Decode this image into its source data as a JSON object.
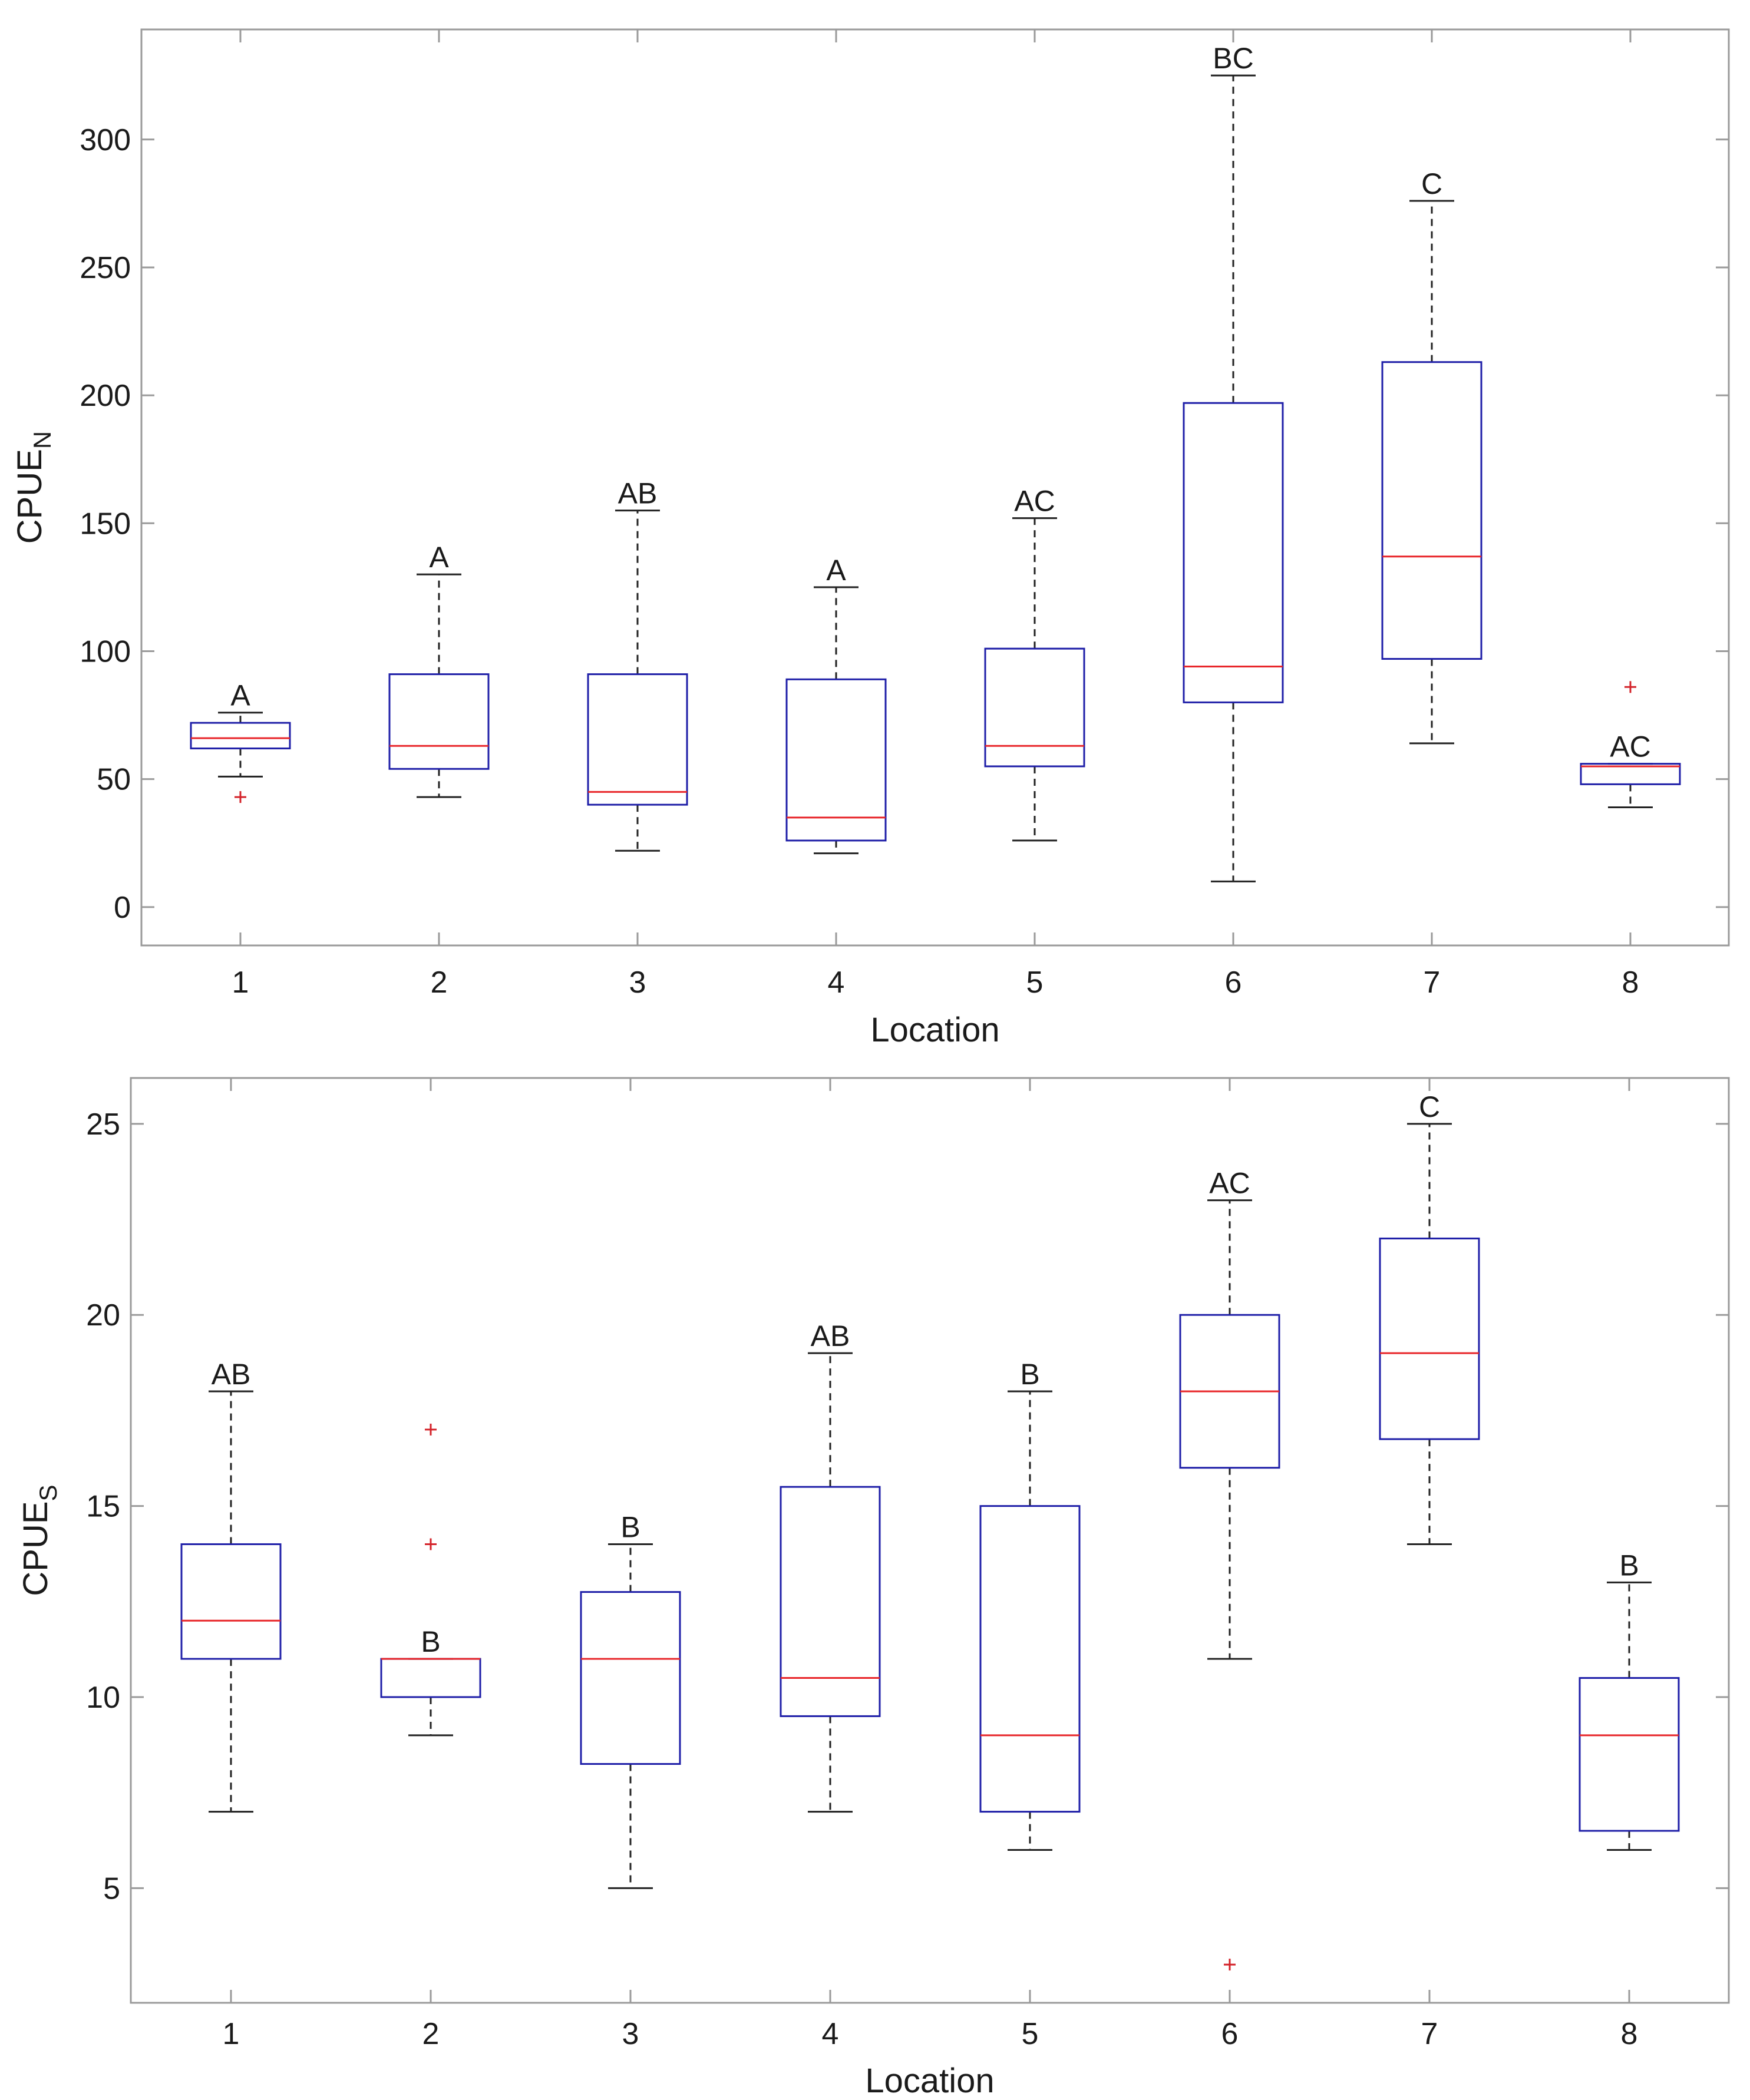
{
  "chart_data": [
    {
      "type": "boxplot",
      "xlabel": "Location",
      "ylabel": "CPUE",
      "ylabel_subscript": "N",
      "ylim": [
        -15,
        343
      ],
      "yticks": [
        0,
        50,
        100,
        150,
        200,
        250,
        300
      ],
      "categories": [
        "1",
        "2",
        "3",
        "4",
        "5",
        "6",
        "7",
        "8"
      ],
      "boxes": [
        {
          "location": "1",
          "whisker_low": 51,
          "q1": 62,
          "median": 66,
          "q3": 72,
          "whisker_high": 76,
          "outliers": [
            43
          ],
          "letter": "A"
        },
        {
          "location": "2",
          "whisker_low": 43,
          "q1": 54,
          "median": 63,
          "q3": 91,
          "whisker_high": 130,
          "outliers": [],
          "letter": "A"
        },
        {
          "location": "3",
          "whisker_low": 22,
          "q1": 40,
          "median": 45,
          "q3": 91,
          "whisker_high": 155,
          "outliers": [],
          "letter": "AB"
        },
        {
          "location": "4",
          "whisker_low": 21,
          "q1": 26,
          "median": 35,
          "q3": 89,
          "whisker_high": 125,
          "outliers": [],
          "letter": "A"
        },
        {
          "location": "5",
          "whisker_low": 26,
          "q1": 55,
          "median": 63,
          "q3": 101,
          "whisker_high": 152,
          "outliers": [],
          "letter": "AC"
        },
        {
          "location": "6",
          "whisker_low": 10,
          "q1": 80,
          "median": 94,
          "q3": 197,
          "whisker_high": 325,
          "outliers": [],
          "letter": "BC"
        },
        {
          "location": "7",
          "whisker_low": 64,
          "q1": 97,
          "median": 137,
          "q3": 213,
          "whisker_high": 276,
          "outliers": [],
          "letter": "C"
        },
        {
          "location": "8",
          "whisker_low": 39,
          "q1": 48,
          "median": 55,
          "q3": 56,
          "whisker_high": 56,
          "outliers": [
            86
          ],
          "letter": "AC"
        }
      ]
    },
    {
      "type": "boxplot",
      "xlabel": "Location",
      "ylabel": "CPUE",
      "ylabel_subscript": "S",
      "ylim": [
        2.0,
        26.2
      ],
      "yticks": [
        5,
        10,
        15,
        20,
        25
      ],
      "categories": [
        "1",
        "2",
        "3",
        "4",
        "5",
        "6",
        "7",
        "8"
      ],
      "boxes": [
        {
          "location": "1",
          "whisker_low": 7,
          "q1": 11,
          "median": 12,
          "q3": 14,
          "whisker_high": 18,
          "outliers": [],
          "letter": "AB"
        },
        {
          "location": "2",
          "whisker_low": 9,
          "q1": 10,
          "median": 11,
          "q3": 11,
          "whisker_high": 11,
          "outliers": [
            14,
            17
          ],
          "letter": "B"
        },
        {
          "location": "3",
          "whisker_low": 5,
          "q1": 8.25,
          "median": 11,
          "q3": 12.75,
          "whisker_high": 14,
          "outliers": [],
          "letter": "B"
        },
        {
          "location": "4",
          "whisker_low": 7,
          "q1": 9.5,
          "median": 10.5,
          "q3": 15.5,
          "whisker_high": 19,
          "outliers": [],
          "letter": "AB"
        },
        {
          "location": "5",
          "whisker_low": 6,
          "q1": 7,
          "median": 9,
          "q3": 15,
          "whisker_high": 18,
          "outliers": [],
          "letter": "B"
        },
        {
          "location": "6",
          "whisker_low": 11,
          "q1": 16,
          "median": 18,
          "q3": 20,
          "whisker_high": 23,
          "outliers": [
            3
          ],
          "letter": "AC"
        },
        {
          "location": "7",
          "whisker_low": 14,
          "q1": 16.75,
          "median": 19,
          "q3": 22,
          "whisker_high": 25,
          "outliers": [],
          "letter": "C"
        },
        {
          "location": "8",
          "whisker_low": 6,
          "q1": 6.5,
          "median": 9,
          "q3": 10.5,
          "whisker_high": 13,
          "outliers": [],
          "letter": "B"
        }
      ]
    }
  ],
  "colors": {
    "box": "#1f1fa8",
    "median": "#e8262a",
    "outlier": "#d4232a",
    "whisker": "#222222",
    "axis": "#9a9a9a",
    "text": "#1a1a1a"
  }
}
